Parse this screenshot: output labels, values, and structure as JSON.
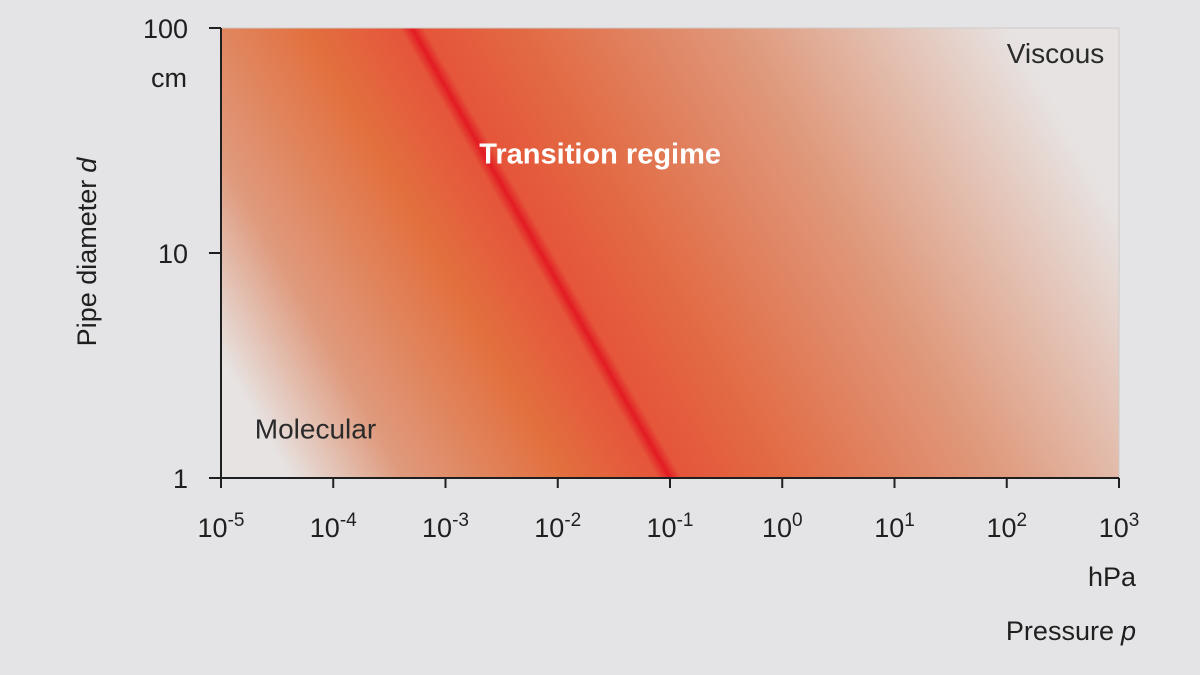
{
  "chart_data": {
    "type": "heatmap",
    "title": "",
    "xlabel": "Pressure",
    "xlabel_symbol": "p",
    "xunit": "hPa",
    "ylabel": "Pipe diameter",
    "ylabel_symbol": "d",
    "yunit": "cm",
    "xscale": "log",
    "yscale": "log",
    "xlim": [
      1e-05,
      1000
    ],
    "ylim": [
      1,
      100
    ],
    "x_ticks": [
      {
        "base": "10",
        "exp": "-5"
      },
      {
        "base": "10",
        "exp": "-4"
      },
      {
        "base": "10",
        "exp": "-3"
      },
      {
        "base": "10",
        "exp": "-2"
      },
      {
        "base": "10",
        "exp": "-1"
      },
      {
        "base": "10",
        "exp": "0"
      },
      {
        "base": "10",
        "exp": "1"
      },
      {
        "base": "10",
        "exp": "2"
      },
      {
        "base": "10",
        "exp": "3"
      }
    ],
    "x_tick_values": [
      1e-05,
      0.0001,
      0.001,
      0.01,
      0.1,
      1,
      10,
      100,
      1000
    ],
    "y_ticks": [
      "1",
      "10",
      "100"
    ],
    "y_tick_values": [
      1,
      10,
      100
    ],
    "transition_line": {
      "points": [
        {
          "x": 0.0005,
          "y": 100
        },
        {
          "x": 0.1,
          "y": 1
        }
      ]
    },
    "regions": [
      {
        "label": "Molecular",
        "x": 2e-05,
        "y": 1.5
      },
      {
        "label": "Transition regime",
        "x": 0.002,
        "y": 25
      },
      {
        "label": "Viscous",
        "x": 100,
        "y": 70
      }
    ],
    "colors": {
      "background": "#e4e4e6",
      "plot_base": "#e7e3e2",
      "peak": "#e31b23",
      "mid": "#e5553a",
      "wide": "#df9a7d",
      "axis": "#1f1f1f"
    }
  }
}
